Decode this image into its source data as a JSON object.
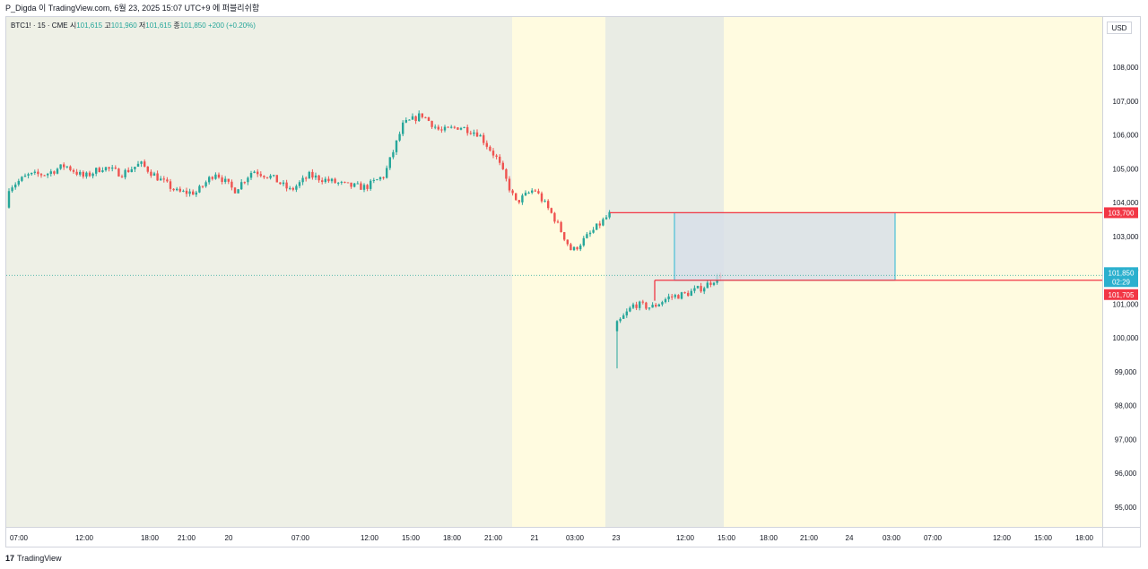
{
  "header": {
    "text": "P_Digda 이 TradingView.com, 6월 23, 2025 15:07 UTC+9 에 퍼블리쉬함"
  },
  "legend": {
    "symbol": "BTC1! · 15 · CME",
    "open_label": "시",
    "open": "101,615",
    "high_label": "고",
    "high": "101,960",
    "low_label": "저",
    "low": "101,615",
    "close_label": "종",
    "close": "101,850",
    "change": "+200 (+0.20%)"
  },
  "currency": "USD",
  "footer": {
    "logo": "17",
    "brand": "TradingView"
  },
  "colors": {
    "up": "#26a69a",
    "down": "#ef5350",
    "level_line": "#f23645",
    "bg_regular": "#eef0e6",
    "bg_extended": "#fffbe0",
    "bg_weekend": "#e9ece4",
    "zone_fill": "#d6dee8",
    "zone_border": "#29b6d4"
  },
  "chart_data": {
    "type": "candlestick",
    "symbol": "BTC1!",
    "interval": "15",
    "exchange": "CME",
    "ylim": [
      94500,
      109000
    ],
    "y_ticks": [
      "108,000",
      "107,000",
      "106,000",
      "105,000",
      "104,000",
      "103,000",
      "102,000",
      "101,000",
      "100,000",
      "99,000",
      "98,000",
      "97,000",
      "96,000",
      "95,000"
    ],
    "x_ticks": [
      "07:00",
      "12:00",
      "18:00",
      "21:00",
      "20",
      "07:00",
      "12:00",
      "15:00",
      "18:00",
      "21:00",
      "21",
      "03:00",
      "23",
      "12:00",
      "15:00",
      "18:00",
      "21:00",
      "24",
      "03:00",
      "07:00",
      "12:00",
      "15:00",
      "18:00"
    ],
    "price_labels": [
      {
        "text": "103,700",
        "value": 103700,
        "kind": "level"
      },
      {
        "text": "101,850",
        "value": 101850,
        "kind": "last"
      },
      {
        "text": "02:29",
        "value": 101850,
        "kind": "countdown"
      },
      {
        "text": "101,705",
        "value": 101705,
        "kind": "level"
      }
    ],
    "levels": [
      103700,
      101705
    ],
    "last_price": 101850,
    "zone": {
      "top": 103700,
      "bottom": 101705
    },
    "series": [
      {
        "segment": 1,
        "anchors": [
          [
            103850,
            105050
          ],
          [
            104700,
            104900
          ],
          [
            105000,
            104700
          ],
          [
            105300,
            104900
          ],
          [
            104800,
            104700
          ],
          [
            105200,
            104900
          ],
          [
            104950,
            104750
          ],
          [
            105200,
            105100
          ],
          [
            104800,
            104600
          ],
          [
            104400,
            104200
          ],
          [
            104000,
            104600
          ],
          [
            104900,
            104900
          ],
          [
            104400,
            104300
          ],
          [
            104900,
            105000
          ],
          [
            104800,
            104700
          ],
          [
            104400,
            104300
          ],
          [
            104800,
            104800
          ],
          [
            104650,
            104650
          ],
          [
            104500,
            104500
          ],
          [
            104300,
            104600
          ],
          [
            104800,
            104800
          ],
          [
            106300,
            106300
          ],
          [
            106600,
            106600
          ],
          [
            106100,
            106100
          ],
          [
            106200,
            106300
          ],
          [
            106000,
            106100
          ],
          [
            105300,
            105300
          ],
          [
            104000,
            104000
          ],
          [
            104500,
            104300
          ],
          [
            103600,
            103600
          ],
          [
            102400,
            102700
          ],
          [
            103200,
            103000
          ],
          [
            103600,
            103700
          ]
        ]
      },
      {
        "segment": 2,
        "anchors": [
          [
            100200,
            100600
          ],
          [
            101000,
            101000
          ],
          [
            101100,
            100700
          ],
          [
            101400,
            101000
          ],
          [
            101300,
            101300
          ],
          [
            101500,
            101500
          ],
          [
            101850,
            101850
          ]
        ]
      }
    ]
  }
}
